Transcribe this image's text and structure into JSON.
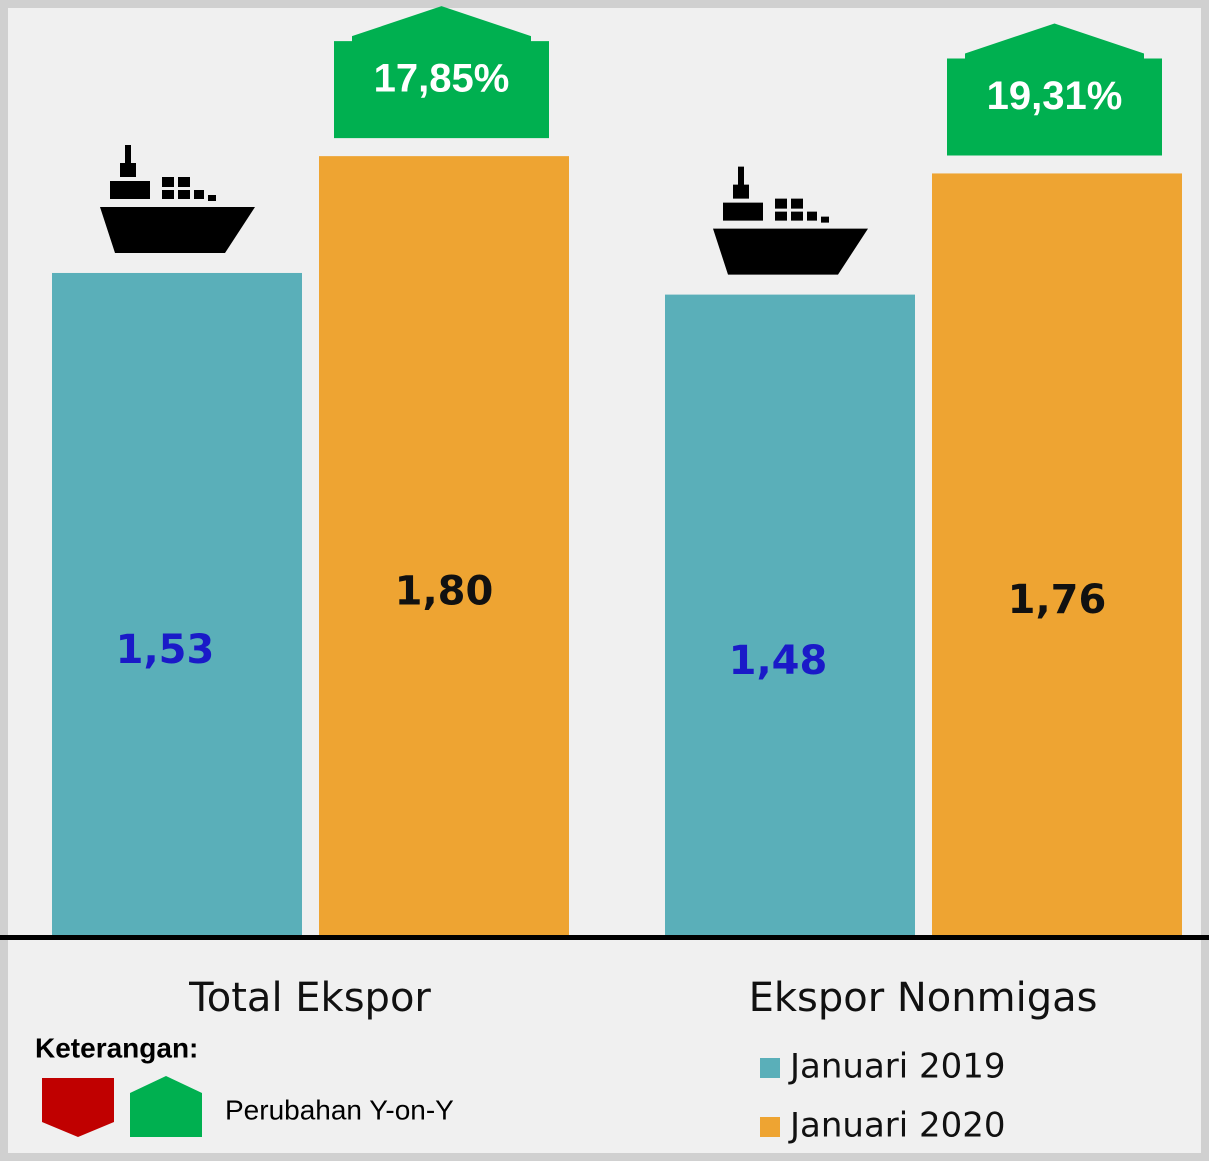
{
  "chart_data": {
    "type": "bar",
    "categories": [
      "Total Ekspor",
      "Ekspor Nonmigas"
    ],
    "series": [
      {
        "name": "Januari 2019",
        "color": "#5aafb9",
        "label_color": "#1a1ac8",
        "values": [
          1.53,
          1.48
        ],
        "value_labels": [
          "1,53",
          "1,48"
        ]
      },
      {
        "name": "Januari 2020",
        "color": "#eea432",
        "label_color": "#111111",
        "values": [
          1.8,
          1.76
        ],
        "value_labels": [
          "1,80",
          "1,76"
        ]
      }
    ],
    "annotations": [
      "17,85%",
      "19,31%"
    ],
    "annotation_color": "#00b050",
    "legend_title": "Keterangan:",
    "legend_note": "Perubahan Y-on-Y"
  }
}
